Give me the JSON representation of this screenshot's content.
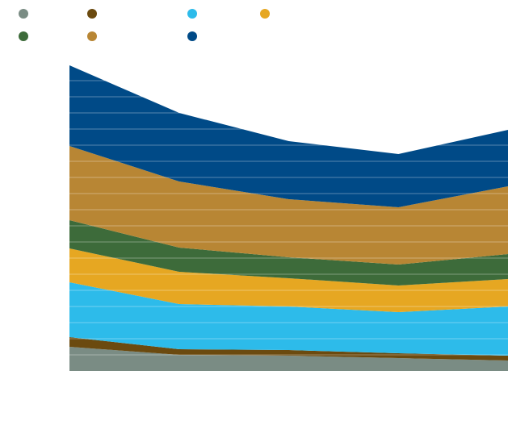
{
  "chart_data": {
    "type": "area",
    "stacked": true,
    "title": "",
    "xlabel": "",
    "ylabel": "",
    "x": [
      "",
      "",
      "",
      "",
      ""
    ],
    "ylim": [
      0,
      19
    ],
    "grid": true,
    "legend_position": "top-left",
    "series": [
      {
        "name": "",
        "color": "#7a8c84",
        "values": [
          1.5,
          1.0,
          0.95,
          0.8,
          0.65
        ]
      },
      {
        "name": "",
        "color": "#6b4a0f",
        "values": [
          0.6,
          0.35,
          0.35,
          0.3,
          0.3
        ]
      },
      {
        "name": "",
        "color": "#2dbbea",
        "values": [
          3.4,
          2.8,
          2.7,
          2.55,
          3.05
        ]
      },
      {
        "name": "",
        "color": "#e6a722",
        "values": [
          2.1,
          2.0,
          1.75,
          1.65,
          1.7
        ]
      },
      {
        "name": "",
        "color": "#3d6b3a",
        "values": [
          1.75,
          1.5,
          1.3,
          1.3,
          1.55
        ]
      },
      {
        "name": "",
        "color": "#b88634",
        "values": [
          4.6,
          4.1,
          3.6,
          3.55,
          4.2
        ]
      },
      {
        "name": "",
        "color": "#004a87",
        "values": [
          5.0,
          4.25,
          3.6,
          3.3,
          3.5
        ]
      }
    ]
  }
}
